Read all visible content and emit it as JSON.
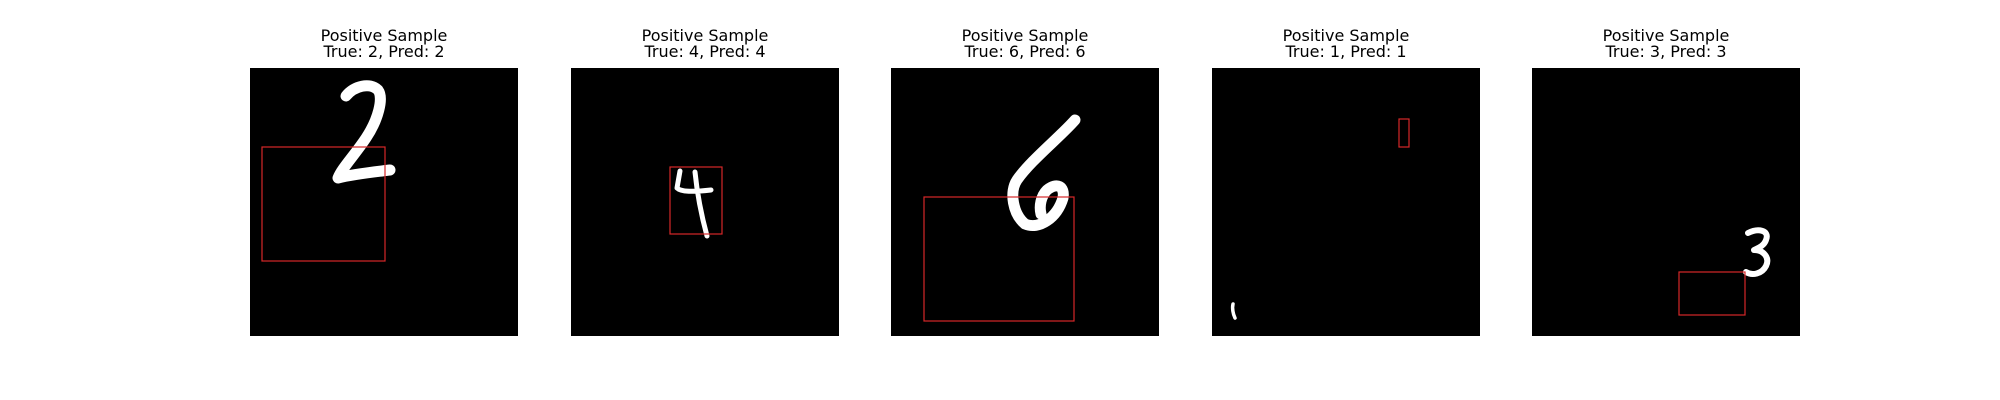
{
  "figure": {
    "panels": [
      {
        "title": "Positive Sample",
        "subtitle": "True: 2, Pred: 2",
        "true_label": 2,
        "pred_label": 2,
        "digit": "2"
      },
      {
        "title": "Positive Sample",
        "subtitle": "True: 4, Pred: 4",
        "true_label": 4,
        "pred_label": 4,
        "digit": "4"
      },
      {
        "title": "Positive Sample",
        "subtitle": "True: 6, Pred: 6",
        "true_label": 6,
        "pred_label": 6,
        "digit": "6"
      },
      {
        "title": "Positive Sample",
        "subtitle": "True: 1, Pred: 1",
        "true_label": 1,
        "pred_label": 1,
        "digit": "1"
      },
      {
        "title": "Positive Sample",
        "subtitle": "True: 3, Pred: 3",
        "true_label": 3,
        "pred_label": 3,
        "digit": "3"
      }
    ],
    "colors": {
      "background": "#000000",
      "digit": "#ffffff",
      "box": "#d62728"
    }
  }
}
